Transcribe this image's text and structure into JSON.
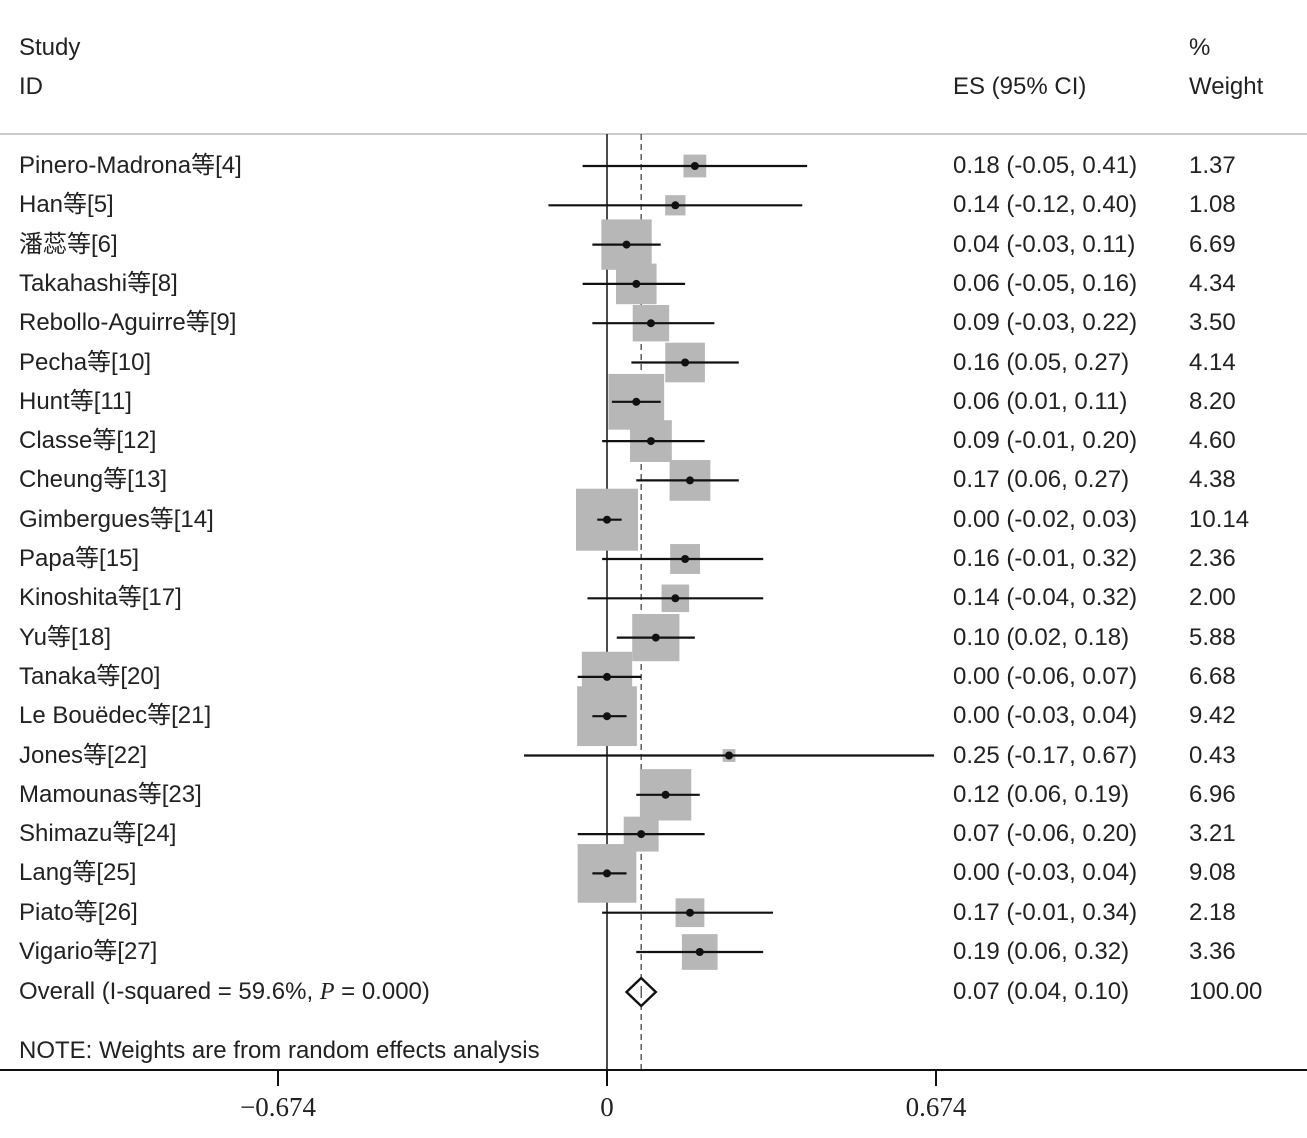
{
  "header": {
    "study_label_line1": "Study",
    "study_label_line2": "ID",
    "es_label": "ES (95% CI)",
    "weight_label_line1": "%",
    "weight_label_line2": "Weight"
  },
  "note": "NOTE: Weights are from random effects analysis",
  "chart_data": {
    "type": "forest",
    "effect_column": "ES (95% CI)",
    "weight_column": "% Weight",
    "x_ticks": [
      -0.674,
      0,
      0.674
    ],
    "x_tick_labels": [
      "−0.674",
      "0",
      "0.674"
    ],
    "xlim": [
      -1.2,
      1.43
    ],
    "reference_line": 0,
    "overall_line": 0.07,
    "studies": [
      {
        "label": "Pinero-Madrona等[4]",
        "es": 0.18,
        "lo": -0.05,
        "hi": 0.41,
        "ci_text": "0.18 (-0.05, 0.41)",
        "weight": 1.37,
        "weight_text": "1.37"
      },
      {
        "label": "Han等[5]",
        "es": 0.14,
        "lo": -0.12,
        "hi": 0.4,
        "ci_text": "0.14 (-0.12, 0.40)",
        "weight": 1.08,
        "weight_text": "1.08"
      },
      {
        "label": "潘蕊等[6]",
        "es": 0.04,
        "lo": -0.03,
        "hi": 0.11,
        "ci_text": "0.04 (-0.03, 0.11)",
        "weight": 6.69,
        "weight_text": "6.69"
      },
      {
        "label": "Takahashi等[8]",
        "es": 0.06,
        "lo": -0.05,
        "hi": 0.16,
        "ci_text": "0.06 (-0.05, 0.16)",
        "weight": 4.34,
        "weight_text": "4.34"
      },
      {
        "label": "Rebollo-Aguirre等[9]",
        "es": 0.09,
        "lo": -0.03,
        "hi": 0.22,
        "ci_text": "0.09 (-0.03, 0.22)",
        "weight": 3.5,
        "weight_text": "3.50"
      },
      {
        "label": "Pecha等[10]",
        "es": 0.16,
        "lo": 0.05,
        "hi": 0.27,
        "ci_text": "0.16 (0.05, 0.27)",
        "weight": 4.14,
        "weight_text": "4.14"
      },
      {
        "label": "Hunt等[11]",
        "es": 0.06,
        "lo": 0.01,
        "hi": 0.11,
        "ci_text": "0.06 (0.01, 0.11)",
        "weight": 8.2,
        "weight_text": "8.20"
      },
      {
        "label": "Classe等[12]",
        "es": 0.09,
        "lo": -0.01,
        "hi": 0.2,
        "ci_text": "0.09 (-0.01, 0.20)",
        "weight": 4.6,
        "weight_text": "4.60"
      },
      {
        "label": "Cheung等[13]",
        "es": 0.17,
        "lo": 0.06,
        "hi": 0.27,
        "ci_text": "0.17 (0.06, 0.27)",
        "weight": 4.38,
        "weight_text": "4.38"
      },
      {
        "label": "Gimbergues等[14]",
        "es": 0.0,
        "lo": -0.02,
        "hi": 0.03,
        "ci_text": "0.00 (-0.02, 0.03)",
        "weight": 10.14,
        "weight_text": "10.14"
      },
      {
        "label": "Papa等[15]",
        "es": 0.16,
        "lo": -0.01,
        "hi": 0.32,
        "ci_text": "0.16 (-0.01, 0.32)",
        "weight": 2.36,
        "weight_text": "2.36"
      },
      {
        "label": "Kinoshita等[17]",
        "es": 0.14,
        "lo": -0.04,
        "hi": 0.32,
        "ci_text": "0.14 (-0.04, 0.32)",
        "weight": 2.0,
        "weight_text": "2.00"
      },
      {
        "label": "Yu等[18]",
        "es": 0.1,
        "lo": 0.02,
        "hi": 0.18,
        "ci_text": "0.10 (0.02, 0.18)",
        "weight": 5.88,
        "weight_text": "5.88"
      },
      {
        "label": "Tanaka等[20]",
        "es": 0.0,
        "lo": -0.06,
        "hi": 0.07,
        "ci_text": "0.00 (-0.06, 0.07)",
        "weight": 6.68,
        "weight_text": "6.68"
      },
      {
        "label": "Le Bouëdec等[21]",
        "es": 0.0,
        "lo": -0.03,
        "hi": 0.04,
        "ci_text": "0.00 (-0.03, 0.04)",
        "weight": 9.42,
        "weight_text": "9.42"
      },
      {
        "label": "Jones等[22]",
        "es": 0.25,
        "lo": -0.17,
        "hi": 0.67,
        "ci_text": "0.25 (-0.17, 0.67)",
        "weight": 0.43,
        "weight_text": "0.43"
      },
      {
        "label": "Mamounas等[23]",
        "es": 0.12,
        "lo": 0.06,
        "hi": 0.19,
        "ci_text": "0.12 (0.06, 0.19)",
        "weight": 6.96,
        "weight_text": "6.96"
      },
      {
        "label": "Shimazu等[24]",
        "es": 0.07,
        "lo": -0.06,
        "hi": 0.2,
        "ci_text": "0.07 (-0.06, 0.20)",
        "weight": 3.21,
        "weight_text": "3.21"
      },
      {
        "label": "Lang等[25]",
        "es": 0.0,
        "lo": -0.03,
        "hi": 0.04,
        "ci_text": "0.00 (-0.03, 0.04)",
        "weight": 9.08,
        "weight_text": "9.08"
      },
      {
        "label": "Piato等[26]",
        "es": 0.17,
        "lo": -0.01,
        "hi": 0.34,
        "ci_text": "0.17 (-0.01, 0.34)",
        "weight": 2.18,
        "weight_text": "2.18"
      },
      {
        "label": "Vigario等[27]",
        "es": 0.19,
        "lo": 0.06,
        "hi": 0.32,
        "ci_text": "0.19 (0.06, 0.32)",
        "weight": 3.36,
        "weight_text": "3.36"
      }
    ],
    "overall": {
      "label_prefix": "Overall  (I-squared = 59.6%, ",
      "label_p": "P",
      "label_suffix": " = 0.000)",
      "es": 0.07,
      "lo": 0.04,
      "hi": 0.1,
      "ci_text": "0.07 (0.04, 0.10)",
      "weight_text": "100.00"
    },
    "colors": {
      "box": "#b7b7b7",
      "line": "#111111",
      "dashed": "#444444"
    }
  }
}
